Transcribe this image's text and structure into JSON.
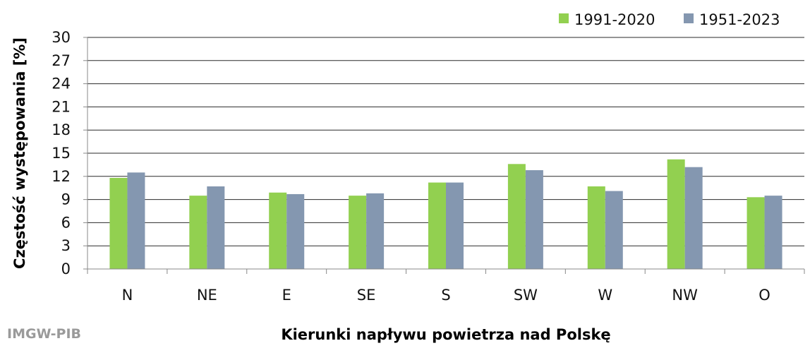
{
  "chart_data": {
    "type": "bar",
    "categories": [
      "N",
      "NE",
      "E",
      "SE",
      "S",
      "SW",
      "W",
      "NW",
      "O"
    ],
    "series": [
      {
        "name": "1991-2020",
        "color": "#92d050",
        "values": [
          11.8,
          9.5,
          9.9,
          9.5,
          11.2,
          13.6,
          10.7,
          14.2,
          9.3
        ]
      },
      {
        "name": "1951-2023",
        "color": "#8497b0",
        "values": [
          12.5,
          10.7,
          9.7,
          9.8,
          11.2,
          12.8,
          10.1,
          13.2,
          9.5
        ]
      }
    ],
    "xlabel": "Kierunki napływu powietrza nad Polskę",
    "ylabel": "Częstość występowania [%]",
    "ylim": [
      0,
      30
    ],
    "yticks": [
      0,
      3,
      6,
      9,
      12,
      15,
      18,
      21,
      24,
      27,
      30
    ],
    "grid": true,
    "legend_position": "top-right"
  },
  "credit": "IMGW-PIB"
}
